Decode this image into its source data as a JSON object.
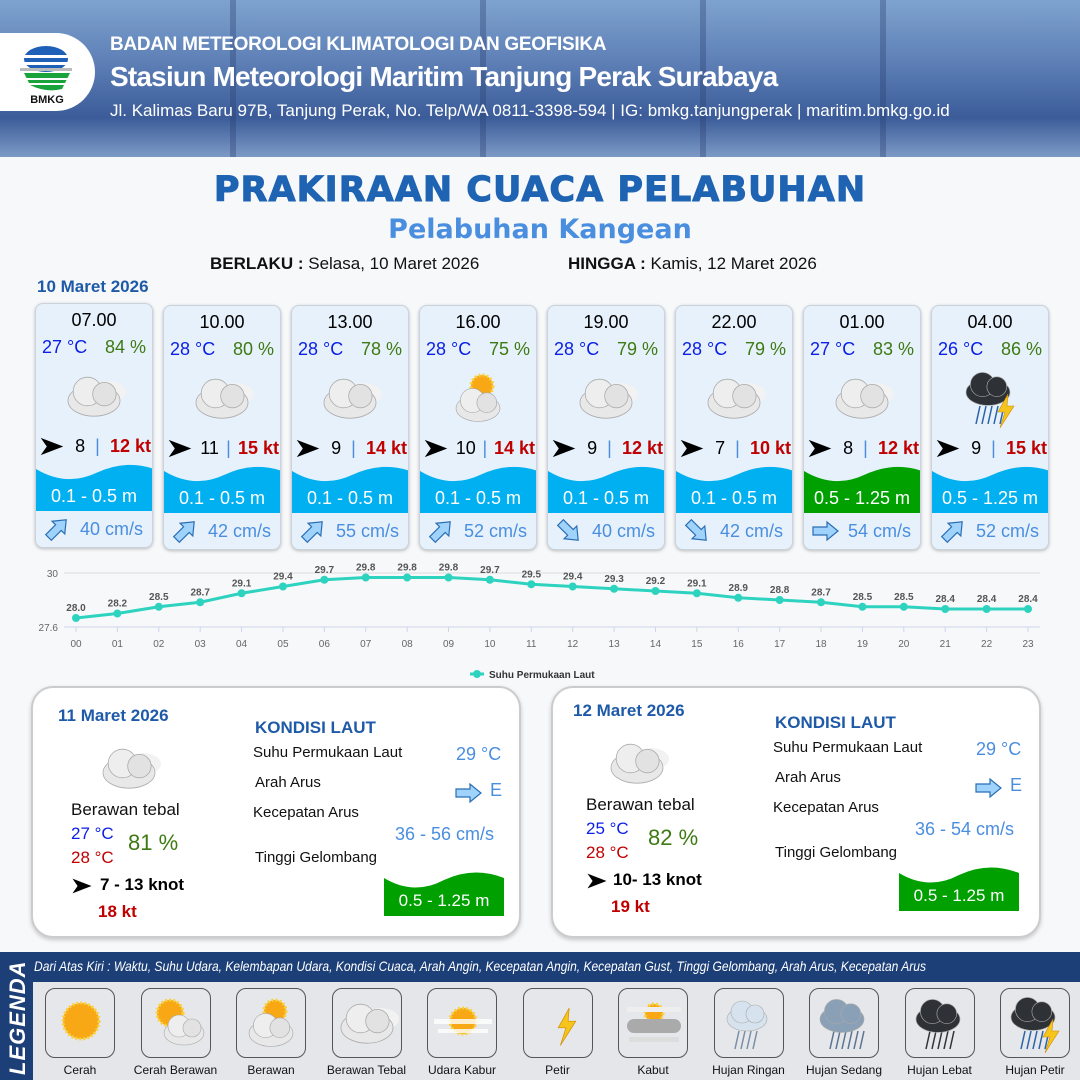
{
  "header": {
    "org": "BADAN METEOROLOGI KLIMATOLOGI DAN GEOFISIKA",
    "station": "Stasiun Meteorologi Maritim Tanjung Perak Surabaya",
    "contact": "Jl. Kalimas Baru 97B, Tanjung Perak, No. Telp/WA 0811-3398-594 | IG: bmkg.tanjungperak | maritim.bmkg.go.id",
    "logo_text": "BMKG"
  },
  "title": "PRAKIRAAN CUACA PELABUHAN",
  "subtitle": "Pelabuhan Kangean",
  "validity": {
    "from_label": "BERLAKU :",
    "from": "Selasa, 10 Maret 2026",
    "to_label": "HINGGA :",
    "to": "Kamis, 12 Maret 2026"
  },
  "day0": "10 Maret 2026",
  "colors": {
    "temp": "#0a1ee8",
    "humidity": "#3e7a12",
    "gust": "#c00000",
    "wave_low": "#00b0f0",
    "wave_mid": "#00a000",
    "current": "#4a8ee0",
    "title": "#1f63b3"
  },
  "forecast": [
    {
      "time": "07.00",
      "temp": "27 °C",
      "rh": "84 %",
      "weather": "berawan-tebal",
      "wind": "8",
      "gust": "12 kt",
      "wave": "0.1 - 0.5 m",
      "wave_color": "#00b0f0",
      "current_dir": "northeast",
      "current": "40 cm/s"
    },
    {
      "time": "10.00",
      "temp": "28 °C",
      "rh": "80 %",
      "weather": "berawan-tebal",
      "wind": "11",
      "gust": "15 kt",
      "wave": "0.1 - 0.5 m",
      "wave_color": "#00b0f0",
      "current_dir": "northeast",
      "current": "42 cm/s"
    },
    {
      "time": "13.00",
      "temp": "28 °C",
      "rh": "78 %",
      "weather": "berawan-tebal",
      "wind": "9",
      "gust": "14 kt",
      "wave": "0.1 - 0.5 m",
      "wave_color": "#00b0f0",
      "current_dir": "northeast",
      "current": "55 cm/s"
    },
    {
      "time": "16.00",
      "temp": "28 °C",
      "rh": "75 %",
      "weather": "berawan",
      "wind": "10",
      "gust": "14 kt",
      "wave": "0.1 - 0.5 m",
      "wave_color": "#00b0f0",
      "current_dir": "northeast",
      "current": "52 cm/s"
    },
    {
      "time": "19.00",
      "temp": "28 °C",
      "rh": "79 %",
      "weather": "berawan-tebal",
      "wind": "9",
      "gust": "12 kt",
      "wave": "0.1 - 0.5 m",
      "wave_color": "#00b0f0",
      "current_dir": "southeast",
      "current": "40 cm/s"
    },
    {
      "time": "22.00",
      "temp": "28 °C",
      "rh": "79 %",
      "weather": "berawan-tebal",
      "wind": "7",
      "gust": "10 kt",
      "wave": "0.1 - 0.5 m",
      "wave_color": "#00b0f0",
      "current_dir": "southeast",
      "current": "42 cm/s"
    },
    {
      "time": "01.00",
      "temp": "27 °C",
      "rh": "83 %",
      "weather": "berawan-tebal",
      "wind": "8",
      "gust": "12 kt",
      "wave": "0.5 - 1.25 m",
      "wave_color": "#00a000",
      "current_dir": "east",
      "current": "54 cm/s"
    },
    {
      "time": "04.00",
      "temp": "26 °C",
      "rh": "86 %",
      "weather": "hujan-petir",
      "wind": "9",
      "gust": "15 kt",
      "wave": "0.5 - 1.25 m",
      "wave_color": "#00b0f0",
      "current_dir": "northeast",
      "current": "52 cm/s"
    }
  ],
  "chart_data": {
    "type": "line",
    "categories": [
      "00",
      "01",
      "02",
      "03",
      "04",
      "05",
      "06",
      "07",
      "08",
      "09",
      "10",
      "11",
      "12",
      "13",
      "14",
      "15",
      "16",
      "17",
      "18",
      "19",
      "20",
      "21",
      "22",
      "23"
    ],
    "series": [
      {
        "name": "Suhu Permukaan Laut",
        "values": [
          28.0,
          28.2,
          28.5,
          28.7,
          29.1,
          29.4,
          29.7,
          29.8,
          29.8,
          29.8,
          29.7,
          29.5,
          29.4,
          29.3,
          29.2,
          29.1,
          28.9,
          28.8,
          28.7,
          28.5,
          28.5,
          28.4,
          28.4,
          28.4
        ],
        "color": "#2ed3c0"
      }
    ],
    "y_ticks": [
      "30",
      "27.6"
    ],
    "ylim": [
      27.6,
      30
    ],
    "grid": true,
    "legend": "bottom"
  },
  "days": [
    {
      "date": "11 Maret 2026",
      "weather": "Berawan tebal",
      "tmin": "27 °C",
      "tmax": "28 °C",
      "rh": "81 %",
      "wind": "7  - 13 knot",
      "gust": "18 kt",
      "sea_title": "KONDISI LAUT",
      "sst_label": "Suhu Permukaan Laut",
      "sst": "29 °C",
      "dir_label": "Arah Arus",
      "dir": "E",
      "spd_label": "Kecepatan Arus",
      "spd": "36  - 56 cm/s",
      "wave_label": "Tinggi Gelombang",
      "wave": "0.5 - 1.25 m"
    },
    {
      "date": "12 Maret 2026",
      "weather": "Berawan tebal",
      "tmin": "25 °C",
      "tmax": "28 °C",
      "rh": "82 %",
      "wind": "10- 13 knot",
      "gust": "19 kt",
      "sea_title": "KONDISI LAUT",
      "sst_label": "Suhu Permukaan Laut",
      "sst": "29 °C",
      "dir_label": "Arah Arus",
      "dir": "E",
      "spd_label": "Kecepatan Arus",
      "spd": "36  - 54 cm/s",
      "wave_label": "Tinggi Gelombang",
      "wave": "0.5 - 1.25 m"
    }
  ],
  "legend": {
    "title": "LEGENDA",
    "description": "Dari Atas Kiri : Waktu, Suhu Udara, Kelembapan Udara, Kondisi Cuaca, Arah Angin, Kecepatan Angin, Kecepatan Gust, Tinggi Gelombang, Arah Arus, Kecepatan Arus",
    "items": [
      {
        "label": "Cerah",
        "icon": "cerah"
      },
      {
        "label": "Cerah Berawan",
        "icon": "cerah-berawan"
      },
      {
        "label": "Berawan",
        "icon": "berawan"
      },
      {
        "label": "Berawan Tebal",
        "icon": "berawan-tebal"
      },
      {
        "label": "Udara Kabur",
        "icon": "udara-kabur"
      },
      {
        "label": "Petir",
        "icon": "petir"
      },
      {
        "label": "Kabut",
        "icon": "kabut"
      },
      {
        "label": "Hujan Ringan",
        "icon": "hujan-ringan"
      },
      {
        "label": "Hujan Sedang",
        "icon": "hujan-sedang"
      },
      {
        "label": "Hujan Lebat",
        "icon": "hujan-lebat"
      },
      {
        "label": "Hujan Petir",
        "icon": "hujan-petir"
      }
    ]
  }
}
